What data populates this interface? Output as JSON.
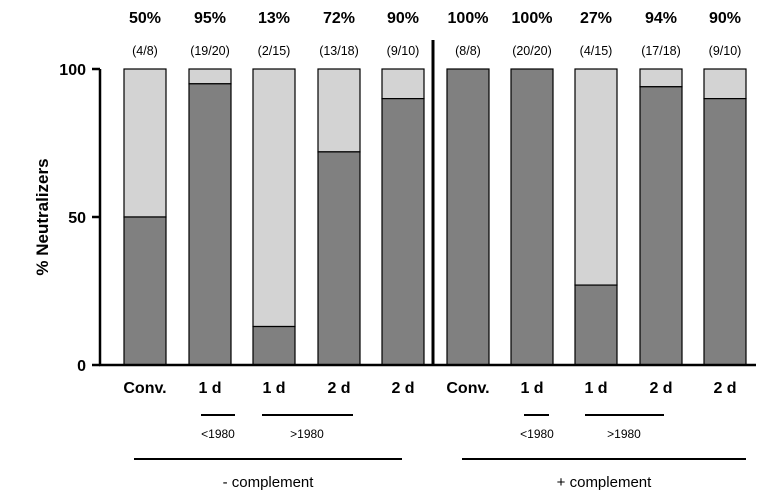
{
  "chart_data": {
    "type": "bar",
    "stacked": true,
    "ylabel": "% Neutralizers",
    "ylim": [
      0,
      100
    ],
    "yticks": [
      "0",
      "50",
      "100"
    ],
    "categories": [
      "Conv.",
      "1 d",
      "1 d",
      "2 d",
      "2 d",
      "Conv.",
      "1 d",
      "1 d",
      "2 d",
      "2 d"
    ],
    "series": [
      {
        "values": [
          50,
          95,
          13,
          72,
          90,
          100,
          100,
          27,
          94,
          90
        ],
        "color": "#808080"
      },
      {
        "values": [
          50,
          5,
          87,
          28,
          10,
          0,
          0,
          73,
          6,
          10
        ],
        "color": "#d3d3d3"
      }
    ],
    "percent_labels": [
      "50%",
      "95%",
      "13%",
      "72%",
      "90%",
      "100%",
      "100%",
      "27%",
      "94%",
      "90%"
    ],
    "fraction_labels": [
      "(4/8)",
      "(19/20)",
      "(2/15)",
      "(13/18)",
      "(9/10)",
      "(8/8)",
      "(20/20)",
      "(4/15)",
      "(17/18)",
      "(9/10)"
    ],
    "subgroup_labels": [
      "<1980",
      ">1980",
      "<1980",
      ">1980"
    ],
    "group_labels": [
      "- complement",
      "+ complement"
    ],
    "grid": false
  }
}
